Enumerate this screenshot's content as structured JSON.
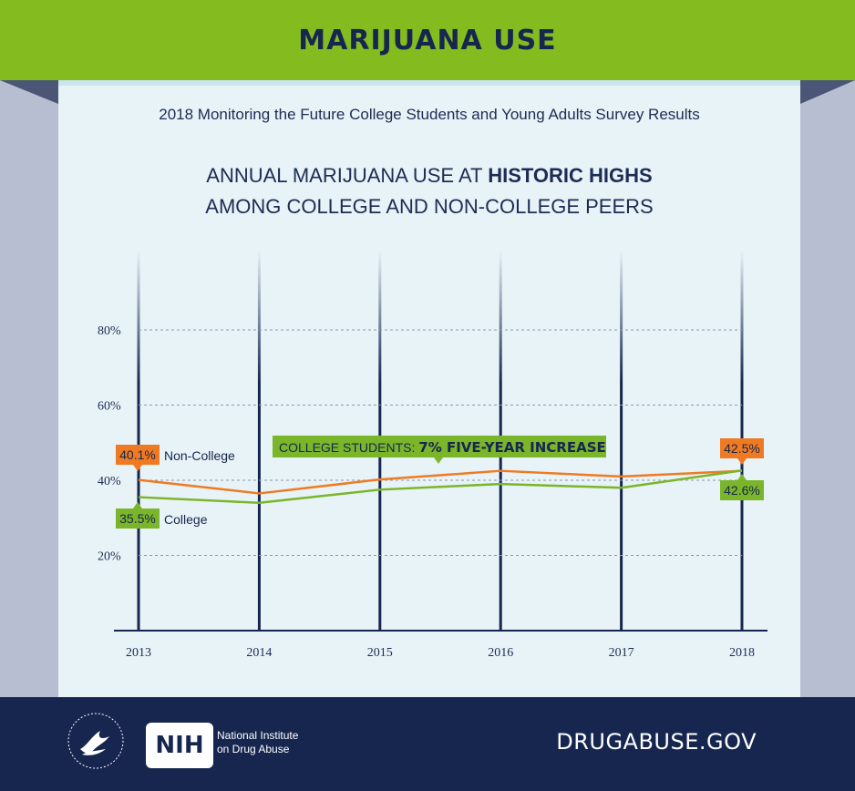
{
  "banner": {
    "title": "MARIJUANA USE"
  },
  "subtitle": "2018 Monitoring the Future College Students and Young Adults Survey Results",
  "heading": {
    "line1_plain": "ANNUAL MARIJUANA USE AT ",
    "line1_bold": "HISTORIC HIGHS",
    "line2": "AMONG COLLEGE AND NON-COLLEGE PEERS"
  },
  "chart_data": {
    "type": "line",
    "title": "ANNUAL MARIJUANA USE AT HISTORIC HIGHS AMONG COLLEGE AND NON-COLLEGE PEERS",
    "x": [
      "2013",
      "2014",
      "2015",
      "2016",
      "2017",
      "2018"
    ],
    "ylim": [
      0,
      100
    ],
    "yticks": [
      "20%",
      "40%",
      "60%",
      "80%"
    ],
    "grid": "horizontal dashed at ticks",
    "series": [
      {
        "name": "Non-College",
        "color": "#f07a22",
        "values": [
          40.1,
          36.5,
          40.2,
          42.5,
          41.0,
          42.5
        ]
      },
      {
        "name": "College",
        "color": "#7ab52a",
        "values": [
          35.5,
          34.0,
          37.5,
          39.0,
          38.0,
          42.6
        ]
      }
    ],
    "annotations": {
      "noncollege_start": "40.1%",
      "noncollege_end": "42.5%",
      "college_start": "35.5%",
      "college_end": "42.6%",
      "callout_prefix": "COLLEGE STUDENTS: ",
      "callout_bold": "7% FIVE-YEAR INCREASE"
    }
  },
  "footer": {
    "nih_logo": "NIH",
    "nih_name_line1": "National Institute",
    "nih_name_line2": "on Drug Abuse",
    "url": "DRUGABUSE.GOV",
    "hhs_seal": "DEPARTMENT OF HEALTH AND HUMAN SERVICES USA"
  },
  "colors": {
    "banner": "#84bc1f",
    "navy": "#16264f",
    "panel": "#e7f3f6",
    "orange": "#f07a22",
    "green": "#7ab52a"
  }
}
